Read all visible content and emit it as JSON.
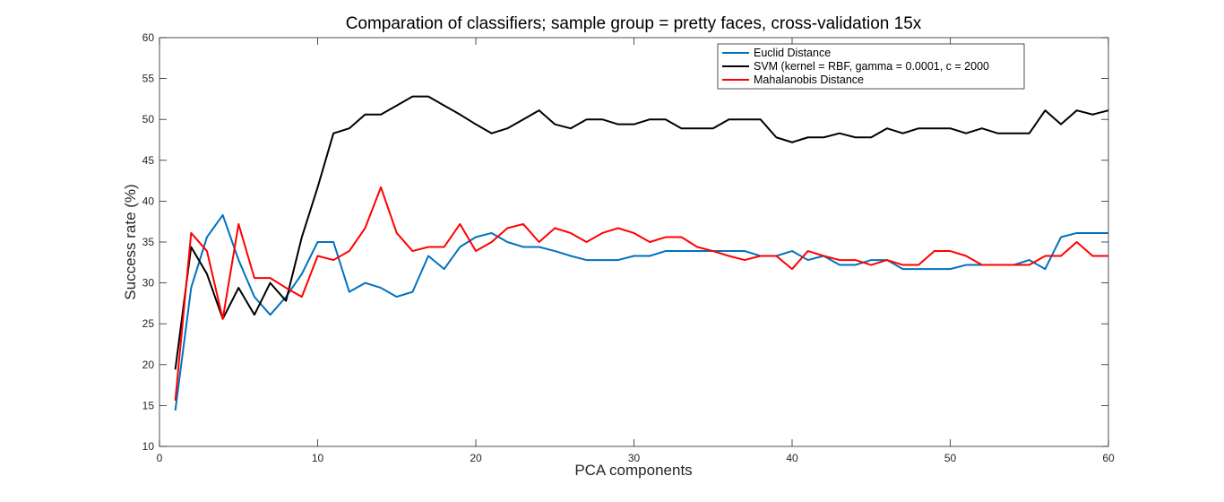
{
  "chart_data": {
    "type": "line",
    "title": "Comparation of classifiers; sample group = pretty faces, cross-validation 15x",
    "xlabel": "PCA components",
    "ylabel": "Success rate (%)",
    "xlim": [
      0,
      60
    ],
    "ylim": [
      10,
      60
    ],
    "xticks": [
      0,
      10,
      20,
      30,
      40,
      50,
      60
    ],
    "yticks": [
      10,
      15,
      20,
      25,
      30,
      35,
      40,
      45,
      50,
      55,
      60
    ],
    "grid": false,
    "legend_position": "top-right",
    "x": [
      1,
      2,
      3,
      4,
      5,
      6,
      7,
      8,
      9,
      10,
      11,
      12,
      13,
      14,
      15,
      16,
      17,
      18,
      19,
      20,
      21,
      22,
      23,
      24,
      25,
      26,
      27,
      28,
      29,
      30,
      31,
      32,
      33,
      34,
      35,
      36,
      37,
      38,
      39,
      40,
      41,
      42,
      43,
      44,
      45,
      46,
      47,
      48,
      49,
      50,
      51,
      52,
      53,
      54,
      55,
      56,
      57,
      58,
      59,
      60
    ],
    "series": [
      {
        "name": "Euclid Distance",
        "color": "#0072BD",
        "values": [
          14.4,
          29.4,
          35.6,
          38.3,
          32.8,
          28.3,
          26.1,
          28.3,
          31.1,
          35.0,
          35.0,
          28.9,
          30.0,
          29.4,
          28.3,
          28.9,
          33.3,
          31.7,
          34.4,
          35.6,
          36.1,
          35.0,
          34.4,
          34.4,
          33.9,
          33.3,
          32.8,
          32.8,
          32.8,
          33.3,
          33.3,
          33.9,
          33.9,
          33.9,
          33.9,
          33.9,
          33.9,
          33.3,
          33.3,
          33.9,
          32.8,
          33.3,
          32.2,
          32.2,
          32.8,
          32.8,
          31.7,
          31.7,
          31.7,
          31.7,
          32.2,
          32.2,
          32.2,
          32.2,
          32.8,
          31.7,
          35.6,
          36.1,
          36.1,
          36.1
        ]
      },
      {
        "name": "SVM (kernel = RBF, gamma = 0.0001, c = 2000",
        "color": "#000000",
        "values": [
          19.4,
          34.4,
          31.1,
          25.6,
          29.4,
          26.1,
          30.0,
          27.8,
          35.6,
          41.7,
          48.3,
          48.9,
          50.6,
          50.6,
          51.7,
          52.8,
          52.8,
          51.7,
          50.6,
          49.4,
          48.3,
          48.9,
          50.0,
          51.1,
          49.4,
          48.9,
          50.0,
          50.0,
          49.4,
          49.4,
          50.0,
          50.0,
          48.9,
          48.9,
          48.9,
          50.0,
          50.0,
          50.0,
          47.8,
          47.2,
          47.8,
          47.8,
          48.3,
          47.8,
          47.8,
          48.9,
          48.3,
          48.9,
          48.9,
          48.9,
          48.3,
          48.9,
          48.3,
          48.3,
          48.3,
          51.1,
          49.4,
          51.1,
          50.6,
          51.1
        ]
      },
      {
        "name": "Mahalanobis Distance",
        "color": "#FF0000",
        "values": [
          15.6,
          36.1,
          33.9,
          25.6,
          37.2,
          30.6,
          30.6,
          29.4,
          28.3,
          33.3,
          32.8,
          33.9,
          36.7,
          41.7,
          36.1,
          33.9,
          34.4,
          34.4,
          37.2,
          33.9,
          35.0,
          36.7,
          37.2,
          35.0,
          36.7,
          36.1,
          35.0,
          36.1,
          36.7,
          36.1,
          35.0,
          35.6,
          35.6,
          34.4,
          33.9,
          33.3,
          32.8,
          33.3,
          33.3,
          31.7,
          33.9,
          33.3,
          32.8,
          32.8,
          32.2,
          32.8,
          32.2,
          32.2,
          33.9,
          33.9,
          33.3,
          32.2,
          32.2,
          32.2,
          32.2,
          33.3,
          33.3,
          35.0,
          33.3,
          33.3
        ]
      }
    ]
  }
}
